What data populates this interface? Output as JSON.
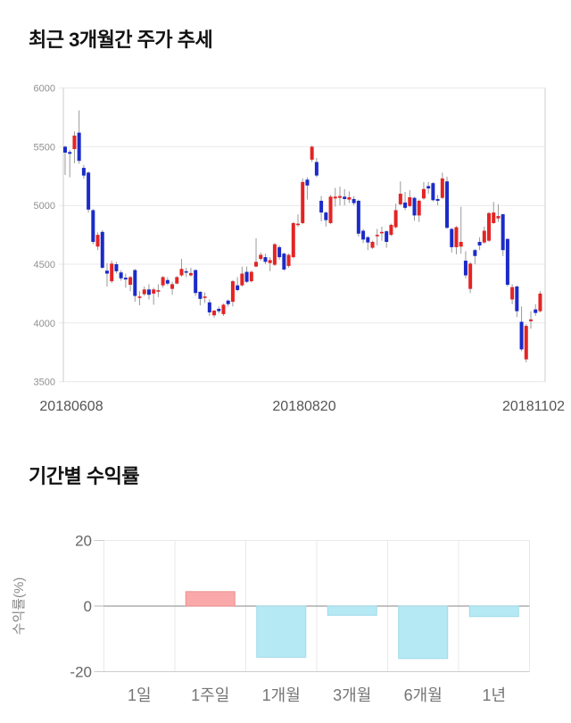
{
  "section1": {
    "title_ref": "see chart_data[0].title"
  },
  "section2": {
    "title_ref": "see chart_data[1].title"
  },
  "colors": {
    "candle_up": "#e42424",
    "candle_down": "#1b2bc8",
    "wick": "#999999",
    "grid": "#e9e9e9",
    "plot_border": "#cccccc",
    "zero_line": "#9e9e9e",
    "price_tick_label": "#909090",
    "date_label": "#555555",
    "bar_positive": "#f9a9a9",
    "bar_positive_border": "#f08f8f",
    "bar_negative": "#b5e9f4",
    "bar_negative_border": "#9fdbe9",
    "bar_tick_label": "#666666",
    "bar_category_label": "#757575",
    "bar_axis_title": "#888888"
  },
  "chart_data": [
    {
      "type": "candlestick",
      "title": "최근 3개월간 주가 추세",
      "ylim": [
        3500,
        6000
      ],
      "yticks": [
        6000,
        5500,
        5000,
        4500,
        4000,
        3500
      ],
      "xticks": [
        "20180608",
        "20180820",
        "20181102"
      ],
      "grid": true,
      "candles_format": [
        "open",
        "high",
        "low",
        "close"
      ],
      "candles": [
        [
          5500,
          5510,
          5260,
          5450
        ],
        [
          5455,
          5475,
          5240,
          5440
        ],
        [
          5480,
          5630,
          5360,
          5595
        ],
        [
          5620,
          5810,
          5355,
          5380
        ],
        [
          5320,
          5345,
          5230,
          5255
        ],
        [
          5280,
          5290,
          4940,
          4965
        ],
        [
          4960,
          4970,
          4670,
          4690
        ],
        [
          4650,
          4770,
          4620,
          4750
        ],
        [
          4775,
          4790,
          4460,
          4470
        ],
        [
          4445,
          4510,
          4310,
          4420
        ],
        [
          4355,
          4530,
          4340,
          4505
        ],
        [
          4500,
          4520,
          4420,
          4440
        ],
        [
          4430,
          4450,
          4360,
          4380
        ],
        [
          4385,
          4420,
          4300,
          4370
        ],
        [
          4325,
          4400,
          4270,
          4390
        ],
        [
          4450,
          4460,
          4180,
          4230
        ],
        [
          4215,
          4270,
          4150,
          4225
        ],
        [
          4245,
          4310,
          4230,
          4285
        ],
        [
          4285,
          4330,
          4200,
          4240
        ],
        [
          4250,
          4300,
          4155,
          4285
        ],
        [
          4270,
          4330,
          4220,
          4278
        ],
        [
          4320,
          4400,
          4300,
          4390
        ],
        [
          4365,
          4390,
          4320,
          4335
        ],
        [
          4290,
          4350,
          4240,
          4330
        ],
        [
          4335,
          4400,
          4330,
          4390
        ],
        [
          4405,
          4545,
          4395,
          4460
        ],
        [
          4440,
          4470,
          4390,
          4430
        ],
        [
          4405,
          4470,
          4395,
          4425
        ],
        [
          4450,
          4455,
          4230,
          4255
        ],
        [
          4265,
          4270,
          4150,
          4205
        ],
        [
          4215,
          4260,
          4170,
          4225
        ],
        [
          4175,
          4200,
          4060,
          4090
        ],
        [
          4065,
          4110,
          4045,
          4105
        ],
        [
          4120,
          4140,
          4080,
          4100
        ],
        [
          4075,
          4165,
          4060,
          4155
        ],
        [
          4190,
          4200,
          4140,
          4160
        ],
        [
          4180,
          4365,
          4140,
          4355
        ],
        [
          4320,
          4390,
          4270,
          4280
        ],
        [
          4320,
          4480,
          4310,
          4420
        ],
        [
          4435,
          4480,
          4340,
          4350
        ],
        [
          4355,
          4445,
          4345,
          4435
        ],
        [
          4480,
          4720,
          4475,
          4520
        ],
        [
          4545,
          4600,
          4530,
          4580
        ],
        [
          4560,
          4590,
          4500,
          4520
        ],
        [
          4510,
          4560,
          4440,
          4535
        ],
        [
          4495,
          4680,
          4485,
          4670
        ],
        [
          4645,
          4660,
          4540,
          4560
        ],
        [
          4590,
          4600,
          4445,
          4455
        ],
        [
          4485,
          4590,
          4470,
          4580
        ],
        [
          4560,
          4860,
          4550,
          4850
        ],
        [
          4835,
          4925,
          4820,
          4845
        ],
        [
          4850,
          5230,
          4840,
          5200
        ],
        [
          5220,
          5240,
          5050,
          5170
        ],
        [
          5390,
          5510,
          5370,
          5500
        ],
        [
          5370,
          5405,
          5240,
          5255
        ],
        [
          5040,
          5080,
          4865,
          4940
        ],
        [
          4940,
          4950,
          4820,
          4875
        ],
        [
          4850,
          5090,
          4840,
          5075
        ],
        [
          5060,
          5150,
          4990,
          5075
        ],
        [
          5065,
          5160,
          5000,
          5080
        ],
        [
          5075,
          5140,
          5000,
          5055
        ],
        [
          5050,
          5120,
          5020,
          5070
        ],
        [
          5055,
          5080,
          5000,
          5020
        ],
        [
          5040,
          5050,
          4735,
          4760
        ],
        [
          4785,
          4800,
          4680,
          4710
        ],
        [
          4730,
          4740,
          4620,
          4685
        ],
        [
          4640,
          4700,
          4630,
          4690
        ],
        [
          4740,
          4800,
          4660,
          4750
        ],
        [
          4765,
          4820,
          4700,
          4775
        ],
        [
          4780,
          4790,
          4640,
          4690
        ],
        [
          4750,
          4845,
          4740,
          4835
        ],
        [
          4815,
          5015,
          4805,
          4960
        ],
        [
          5010,
          5205,
          5000,
          5100
        ],
        [
          5025,
          5115,
          4960,
          4980
        ],
        [
          4995,
          5130,
          4985,
          5070
        ],
        [
          5065,
          5075,
          4870,
          4915
        ],
        [
          4915,
          5050,
          4860,
          5040
        ],
        [
          5060,
          5200,
          5050,
          5140
        ],
        [
          5165,
          5200,
          5100,
          5145
        ],
        [
          5190,
          5200,
          5035,
          5045
        ],
        [
          5055,
          5090,
          5000,
          5040
        ],
        [
          5065,
          5280,
          5055,
          5230
        ],
        [
          5205,
          5245,
          4800,
          4810
        ],
        [
          4800,
          4810,
          4600,
          4645
        ],
        [
          4645,
          4825,
          4585,
          4815
        ],
        [
          4650,
          4990,
          4590,
          4690
        ],
        [
          4530,
          4610,
          4380,
          4405
        ],
        [
          4290,
          4520,
          4255,
          4505
        ],
        [
          4620,
          4630,
          4500,
          4570
        ],
        [
          4690,
          4730,
          4620,
          4660
        ],
        [
          4685,
          4820,
          4675,
          4785
        ],
        [
          4700,
          4945,
          4690,
          4935
        ],
        [
          4850,
          5030,
          4845,
          4940
        ],
        [
          4890,
          5010,
          4860,
          4910
        ],
        [
          4925,
          4930,
          4570,
          4620
        ],
        [
          4715,
          4720,
          4310,
          4325
        ],
        [
          4200,
          4330,
          4160,
          4305
        ],
        [
          4310,
          4320,
          4050,
          4100
        ],
        [
          4010,
          4140,
          3760,
          3775
        ],
        [
          3690,
          3990,
          3665,
          3975
        ],
        [
          4015,
          4100,
          3950,
          4030
        ],
        [
          4115,
          4160,
          4060,
          4085
        ],
        [
          4100,
          4270,
          4090,
          4250
        ]
      ]
    },
    {
      "type": "bar",
      "title": "기간별 수익률",
      "ylabel": "수익률(%)",
      "categories": [
        "1일",
        "1주일",
        "1개월",
        "3개월",
        "6개월",
        "1년"
      ],
      "values": [
        0,
        4.4,
        -15.6,
        -2.8,
        -16,
        -3.2
      ],
      "yticks": [
        20,
        0,
        -20
      ],
      "ylim": [
        -20,
        20
      ],
      "grid": true,
      "legend": "none"
    }
  ]
}
